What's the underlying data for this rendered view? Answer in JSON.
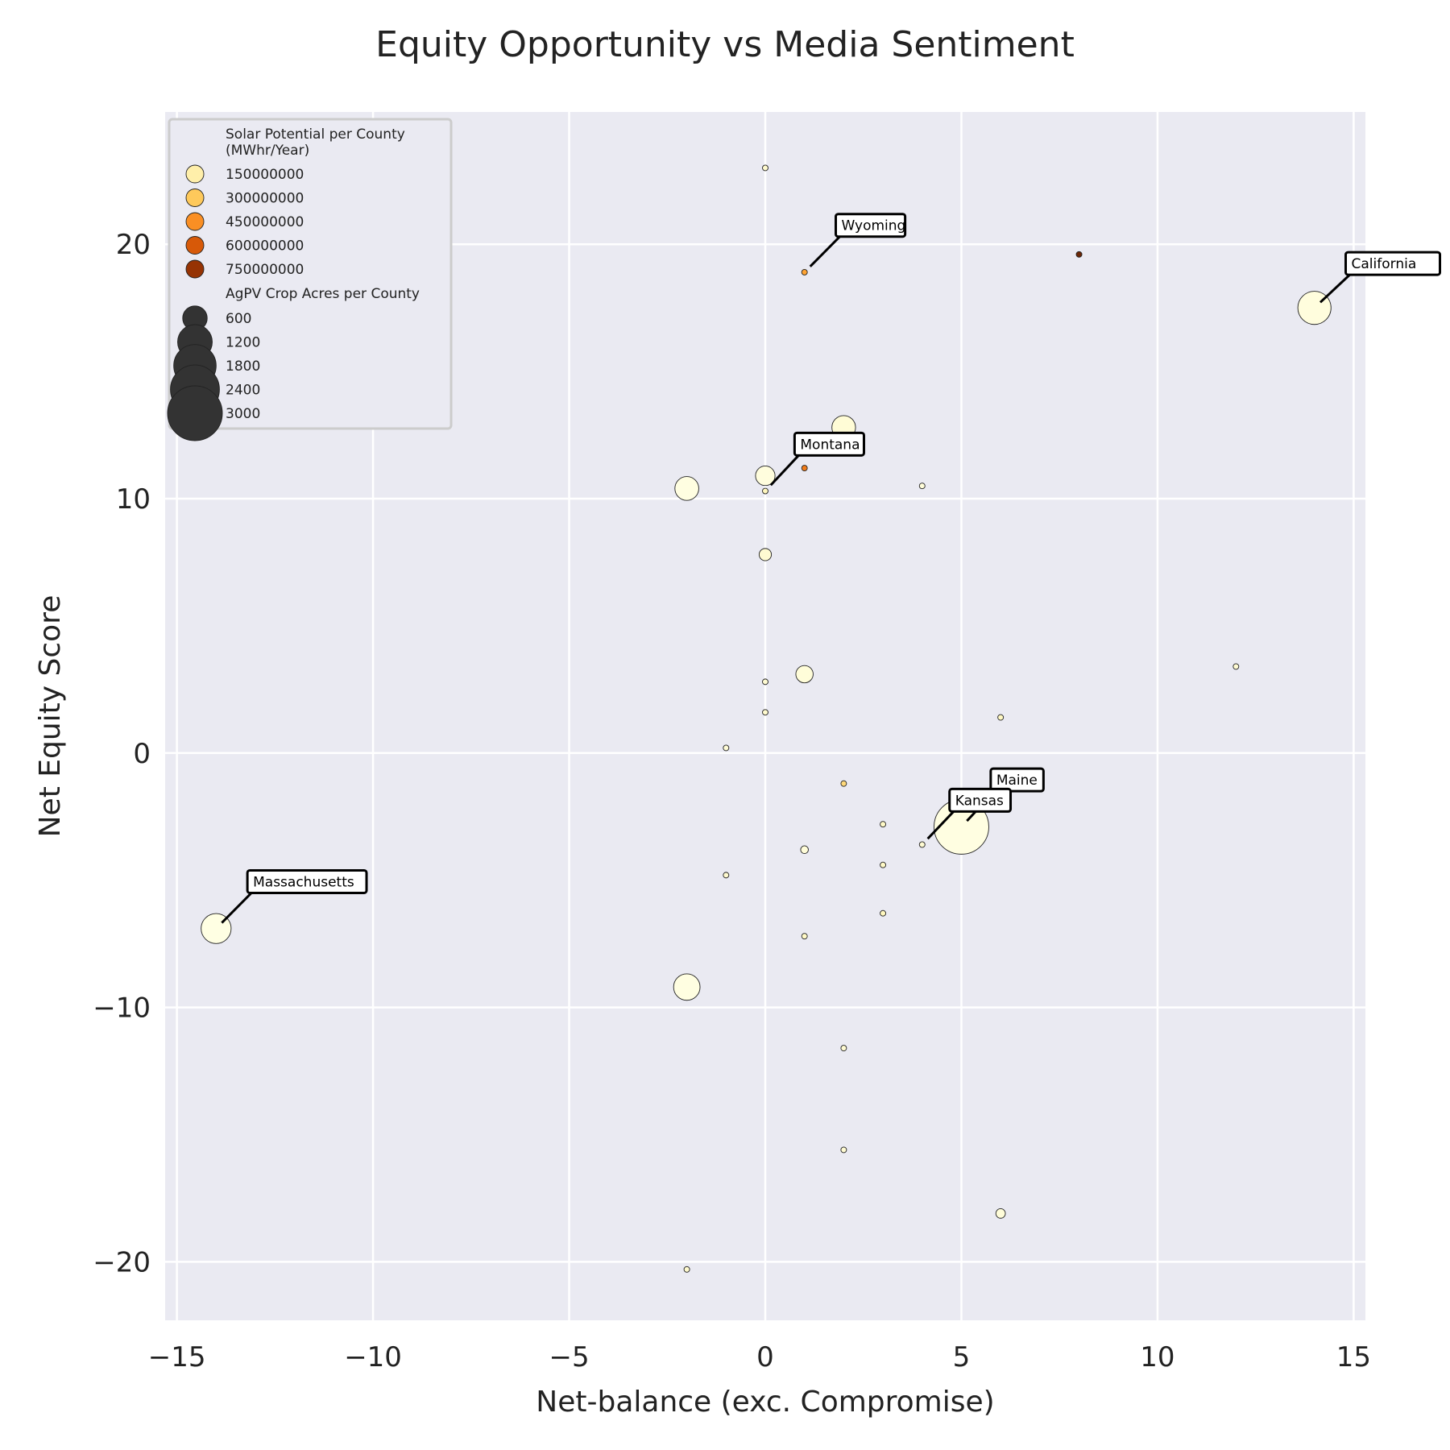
{
  "chart_data": {
    "type": "scatter",
    "title": "Equity Opportunity vs Media Sentiment",
    "xlabel": "Net-balance (exc. Compromise)",
    "ylabel": "Net Equity Score",
    "xlim": [
      -15.3,
      15.3
    ],
    "ylim": [
      -22.3,
      25.2
    ],
    "xticks": [
      -15,
      -10,
      -5,
      0,
      5,
      10,
      15
    ],
    "yticks": [
      -20,
      -10,
      0,
      10,
      20
    ],
    "grid": true,
    "legend_position": "top-left",
    "colors": {
      "background": "#eaeaf2",
      "grid": "#ffffff",
      "marker_edge": "#222222",
      "colormap": [
        "#ffffe5",
        "#fff7bc",
        "#fee391",
        "#fec44f",
        "#fe9929",
        "#ec7014",
        "#cc4c02",
        "#993404",
        "#662506"
      ]
    },
    "color_scale": [
      0,
      850000000
    ],
    "size_scale": {
      "max_acres": 3000,
      "max_marker_diameter": 68
    },
    "legend": {
      "color_title_line1": "Solar Potential per County",
      "color_title_line2": "(MWhr/Year)",
      "color_entries": [
        "150000000",
        "300000000",
        "450000000",
        "600000000",
        "750000000"
      ],
      "size_title": "AgPV Crop Acres per County",
      "size_entries": [
        "600",
        "1200",
        "1800",
        "2400",
        "3000"
      ]
    },
    "points": [
      {
        "x": 0,
        "y": 23,
        "acres": 20,
        "solar": 60000000
      },
      {
        "x": 1,
        "y": 18.9,
        "acres": 25,
        "solar": 400000000
      },
      {
        "x": 8,
        "y": 19.6,
        "acres": 30,
        "solar": 840000000
      },
      {
        "x": 14,
        "y": 17.5,
        "acres": 1100,
        "solar": 20000000
      },
      {
        "x": 2,
        "y": 12.8,
        "acres": 560,
        "solar": 40000000
      },
      {
        "x": 0,
        "y": 10.9,
        "acres": 380,
        "solar": 20000000
      },
      {
        "x": -2,
        "y": 10.4,
        "acres": 570,
        "solar": 10000000
      },
      {
        "x": 1,
        "y": 11.2,
        "acres": 20,
        "solar": 500000000
      },
      {
        "x": 0,
        "y": 10.3,
        "acres": 22,
        "solar": 100000000
      },
      {
        "x": 4,
        "y": 10.5,
        "acres": 22,
        "solar": 30000000
      },
      {
        "x": 0,
        "y": 7.8,
        "acres": 150,
        "solar": 50000000
      },
      {
        "x": 1,
        "y": 3.1,
        "acres": 300,
        "solar": 30000000
      },
      {
        "x": 0,
        "y": 2.8,
        "acres": 15,
        "solar": 50000000
      },
      {
        "x": 12,
        "y": 3.4,
        "acres": 22,
        "solar": 50000000
      },
      {
        "x": 0,
        "y": 1.6,
        "acres": 18,
        "solar": 60000000
      },
      {
        "x": 6,
        "y": 1.4,
        "acres": 30,
        "solar": 90000000
      },
      {
        "x": -1,
        "y": 0.2,
        "acres": 30,
        "solar": 40000000
      },
      {
        "x": 2,
        "y": -1.2,
        "acres": 25,
        "solar": 250000000
      },
      {
        "x": 5,
        "y": -2.9,
        "acres": 3000,
        "solar": 10000000
      },
      {
        "x": 3,
        "y": -2.8,
        "acres": 18,
        "solar": 80000000
      },
      {
        "x": 4,
        "y": -3.6,
        "acres": 15,
        "solar": 50000000
      },
      {
        "x": 1,
        "y": -3.8,
        "acres": 60,
        "solar": 30000000
      },
      {
        "x": 3,
        "y": -4.4,
        "acres": 15,
        "solar": 80000000
      },
      {
        "x": -1,
        "y": -4.8,
        "acres": 15,
        "solar": 60000000
      },
      {
        "x": 3,
        "y": -6.3,
        "acres": 15,
        "solar": 100000000
      },
      {
        "x": -14,
        "y": -6.9,
        "acres": 900,
        "solar": 5000000
      },
      {
        "x": 1,
        "y": -7.2,
        "acres": 15,
        "solar": 80000000
      },
      {
        "x": -2,
        "y": -9.2,
        "acres": 700,
        "solar": 10000000
      },
      {
        "x": 2,
        "y": -11.6,
        "acres": 15,
        "solar": 50000000
      },
      {
        "x": 2,
        "y": -15.6,
        "acres": 15,
        "solar": 50000000
      },
      {
        "x": 6,
        "y": -18.1,
        "acres": 90,
        "solar": 30000000
      },
      {
        "x": -2,
        "y": -20.3,
        "acres": 15,
        "solar": 60000000
      }
    ],
    "annotations": [
      {
        "label": "Wyoming",
        "x": 1,
        "y": 18.9,
        "text_x": 1.9,
        "text_y": 20.3
      },
      {
        "label": "California",
        "x": 14,
        "y": 17.5,
        "text_x": 14.9,
        "text_y": 18.8
      },
      {
        "label": "Montana",
        "x": 0,
        "y": 10.3,
        "text_x": 0.85,
        "text_y": 11.7
      },
      {
        "label": "Maine",
        "x": 5,
        "y": -2.9,
        "text_x": 5.85,
        "text_y": -1.5
      },
      {
        "label": "Kansas",
        "x": 4,
        "y": -3.6,
        "text_x": 4.8,
        "text_y": -2.3
      },
      {
        "label": "Massachusetts",
        "x": -14,
        "y": -6.9,
        "text_x": -13.1,
        "text_y": -5.5
      }
    ]
  }
}
